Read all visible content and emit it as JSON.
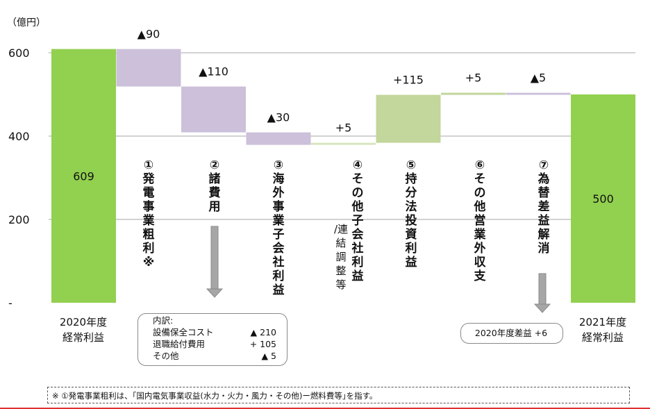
{
  "chart_data": {
    "type": "bar",
    "title": "",
    "unit_label": "（億円）",
    "ylim": [
      0,
      620
    ],
    "y_ticks": [
      {
        "value": 600,
        "label": "600"
      },
      {
        "value": 400,
        "label": "400"
      },
      {
        "value": 200,
        "label": "200"
      },
      {
        "value": 0,
        "label": "-"
      }
    ],
    "bars": [
      {
        "kind": "total",
        "value": 609,
        "label": "609",
        "color": "#92d050",
        "category": [
          "2020年度",
          "経常利益"
        ]
      },
      {
        "kind": "delta",
        "from": 609,
        "to": 519,
        "label": "▲90",
        "color": "#ccc0da",
        "factor": "①発電事業粗利※"
      },
      {
        "kind": "delta",
        "from": 519,
        "to": 409,
        "label": "▲110",
        "color": "#ccc0da",
        "factor": "②諸費用"
      },
      {
        "kind": "delta",
        "from": 409,
        "to": 379,
        "label": "▲30",
        "color": "#ccc0da",
        "factor": "③海外事業子会社利益"
      },
      {
        "kind": "delta",
        "from": 379,
        "to": 384,
        "label": "+5",
        "color": "#d7e4bd",
        "factor": "④その他子会社利益",
        "factor_sub": "/連結調整等"
      },
      {
        "kind": "delta",
        "from": 384,
        "to": 499,
        "label": "+115",
        "color": "#c3d69b",
        "factor": "⑤持分法投資利益"
      },
      {
        "kind": "delta",
        "from": 499,
        "to": 504,
        "label": "+5",
        "color": "#c3d69b",
        "factor": "⑥その他営業外収支"
      },
      {
        "kind": "delta",
        "from": 504,
        "to": 500,
        "label": "▲5",
        "color": "#ccc0da",
        "factor": "⑦為替差益解消"
      },
      {
        "kind": "total",
        "value": 500,
        "label": "500",
        "color": "#92d050",
        "category": [
          "2021年度",
          "経常利益"
        ]
      }
    ],
    "breakdown": {
      "title": "内訳:",
      "rows": [
        {
          "name": "設備保全コスト",
          "value": "▲ 210"
        },
        {
          "name": "退職給付費用",
          "value": "+ 105"
        },
        {
          "name": "その他",
          "value": "▲ 5"
        }
      ]
    },
    "fx_note": "2020年度差益 +6",
    "grid_color": "#a6a6a6",
    "arrow_color": "#a6a6a6"
  },
  "footnote": "※ ①発電事業粗利は、｢国内電気事業収益(水力・火力・風力・その他)ー燃料費等｣を指す。"
}
